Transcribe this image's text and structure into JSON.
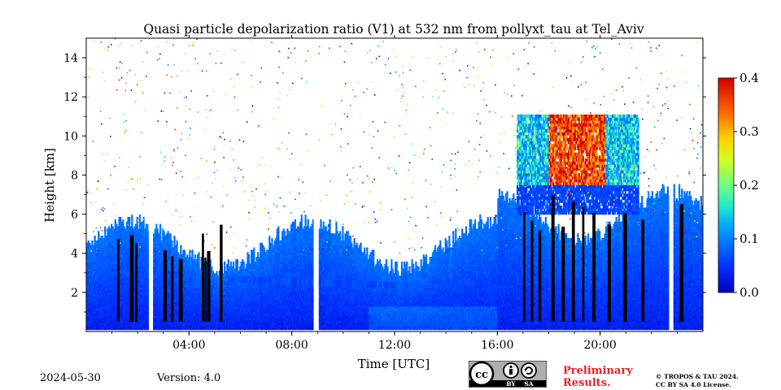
{
  "chart_data": {
    "type": "heatmap",
    "title": "Quasi particle depolarization ratio (V1) at 532 nm from pollyxt_tau at Tel_Aviv",
    "xlabel": "Time [UTC]",
    "ylabel": "Height [km]",
    "xlim": [
      "00:00",
      "24:00"
    ],
    "ylim": [
      0,
      15
    ],
    "x_tick_labels": [
      "04:00",
      "08:00",
      "12:00",
      "16:00",
      "20:00"
    ],
    "y_tick_labels": [
      "2",
      "4",
      "6",
      "8",
      "10",
      "12",
      "14"
    ],
    "colorbar": {
      "range": [
        0.0,
        0.4
      ],
      "tick_labels": [
        "0.0",
        "0.1",
        "0.2",
        "0.3",
        "0.4"
      ],
      "colormap": "jet"
    },
    "features": [
      {
        "label": "boundary layer",
        "time_start": "00:00",
        "time_end": "24:00",
        "height_top_km": 2.5,
        "value": 0.02
      },
      {
        "label": "elevated layer",
        "time_start": "05:30",
        "time_end": "12:00",
        "height_km": 2.5,
        "value": 0.05
      },
      {
        "label": "high cloud",
        "time_start": "16:45",
        "time_end": "21:30",
        "height_bottom_km": 7.5,
        "height_top_km": 11.0,
        "value": 0.35
      },
      {
        "label": "dense low cloud (black)",
        "time_start": "16:50",
        "time_end": "21:40",
        "height_bottom_km": 0.5,
        "height_top_km": 5.0
      }
    ],
    "gaps": [
      "02:30",
      "08:55",
      "22:45"
    ]
  },
  "footer": {
    "date": "2024-05-30",
    "version": "Version: 4.0",
    "preliminary_line1": "Preliminary",
    "preliminary_line2": "Results.",
    "copyright_line1": "© TROPOS & TAU 2024.",
    "copyright_line2": "CC BY SA 4.0 License.",
    "cc_badge": {
      "text_by": "BY",
      "text_sa": "SA",
      "icons": [
        "cc-icon",
        "attribution-icon",
        "share-alike-icon"
      ]
    }
  }
}
